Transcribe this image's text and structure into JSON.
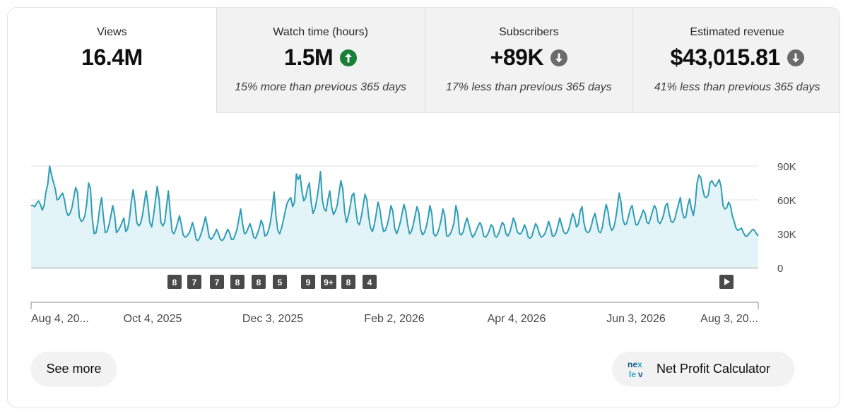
{
  "colors": {
    "line": "#2f9db5",
    "area": "#e3f4f8",
    "up": "#1a7f37",
    "down": "#6b6b6b",
    "grid": "#e0e0e0",
    "marker_bg": "#4a4a4a"
  },
  "metrics": [
    {
      "label": "Views",
      "value": "16.4M",
      "trend": "",
      "comparison": ""
    },
    {
      "label": "Watch time (hours)",
      "value": "1.5M",
      "trend": "up",
      "comparison": "15% more than previous 365 days"
    },
    {
      "label": "Subscribers",
      "value": "+89K",
      "trend": "down",
      "comparison": "17% less than previous 365 days"
    },
    {
      "label": "Estimated revenue",
      "value": "$43,015.81",
      "trend": "down",
      "comparison": "41% less than previous 365 days"
    }
  ],
  "chart_data": {
    "type": "area",
    "y_ticks": [
      "90K",
      "60K",
      "30K",
      "0"
    ],
    "ylim": [
      0,
      90000
    ],
    "x_tick_labels": [
      "Aug 4, 20...",
      "Oct 4, 2025",
      "Dec 3, 2025",
      "Feb 2, 2026",
      "Apr 4, 2026",
      "Jun 3, 2026",
      "Aug 3, 20..."
    ],
    "grid": true,
    "markers": [
      "8",
      "7",
      "7",
      "8",
      "8",
      "5",
      "9",
      "9+",
      "8",
      "4"
    ],
    "series": [
      {
        "values": [
          55,
          55,
          54,
          57,
          59,
          56,
          51,
          55,
          67,
          74,
          90,
          82,
          76,
          70,
          60,
          61,
          64,
          66,
          60,
          50,
          46,
          48,
          53,
          62,
          71,
          67,
          45,
          41,
          42,
          46,
          57,
          75,
          70,
          43,
          30,
          31,
          40,
          53,
          62,
          45,
          31,
          32,
          38,
          46,
          55,
          47,
          31,
          33,
          36,
          40,
          44,
          32,
          34,
          43,
          58,
          69,
          57,
          40,
          37,
          39,
          46,
          57,
          68,
          56,
          40,
          36,
          46,
          59,
          72,
          61,
          40,
          37,
          40,
          54,
          68,
          49,
          32,
          30,
          34,
          40,
          46,
          38,
          29,
          27,
          28,
          30,
          34,
          40,
          34,
          25,
          24,
          27,
          32,
          38,
          45,
          37,
          27,
          25,
          27,
          30,
          34,
          30,
          25,
          24,
          26,
          30,
          34,
          31,
          25,
          25,
          29,
          34,
          43,
          52,
          39,
          30,
          31,
          35,
          39,
          34,
          27,
          26,
          30,
          35,
          42,
          38,
          28,
          29,
          33,
          40,
          52,
          67,
          46,
          33,
          30,
          35,
          42,
          50,
          57,
          60,
          62,
          54,
          58,
          83,
          78,
          82,
          68,
          59,
          62,
          70,
          75,
          58,
          48,
          52,
          60,
          71,
          85,
          60,
          52,
          50,
          60,
          68,
          54,
          47,
          50,
          55,
          66,
          77,
          70,
          50,
          40,
          46,
          54,
          64,
          66,
          52,
          40,
          38,
          45,
          55,
          65,
          60,
          45,
          35,
          32,
          38,
          47,
          58,
          52,
          40,
          32,
          33,
          38,
          45,
          55,
          50,
          35,
          30,
          34,
          40,
          48,
          56,
          50,
          38,
          30,
          32,
          38,
          46,
          54,
          49,
          34,
          29,
          31,
          36,
          44,
          55,
          48,
          30,
          28,
          30,
          35,
          42,
          52,
          46,
          28,
          28,
          30,
          34,
          40,
          55,
          48,
          30,
          29,
          32,
          39,
          44,
          38,
          31,
          27,
          29,
          33,
          37,
          40,
          36,
          28,
          27,
          29,
          33,
          38,
          36,
          28,
          27,
          30,
          35,
          40,
          38,
          30,
          28,
          31,
          37,
          44,
          40,
          32,
          30,
          30,
          33,
          38,
          34,
          27,
          26,
          28,
          34,
          39,
          36,
          30,
          27,
          28,
          30,
          35,
          41,
          36,
          28,
          28,
          31,
          37,
          44,
          38,
          32,
          30,
          31,
          35,
          42,
          48,
          44,
          36,
          38,
          50,
          54,
          40,
          33,
          31,
          32,
          37,
          44,
          48,
          40,
          32,
          31,
          36,
          47,
          56,
          50,
          38,
          33,
          35,
          42,
          53,
          66,
          58,
          43,
          38,
          39,
          45,
          52,
          55,
          46,
          38,
          38,
          42,
          46,
          51,
          48,
          40,
          39,
          44,
          50,
          55,
          52,
          41,
          39,
          42,
          47,
          55,
          57,
          48,
          41,
          40,
          43,
          50,
          56,
          62,
          50,
          44,
          45,
          55,
          61,
          52,
          46,
          56,
          75,
          82,
          80,
          70,
          63,
          62,
          64,
          75,
          77,
          74,
          72,
          75,
          78,
          71,
          55,
          52,
          53,
          58,
          55,
          46,
          41,
          35,
          33,
          34,
          35,
          31,
          28,
          28,
          30,
          32,
          34,
          33,
          30,
          28
        ],
        "area": true
      }
    ]
  },
  "buttons": {
    "see_more": "See more",
    "calculator": "Net Profit Calculator"
  },
  "icons": {
    "trend_up": "arrow-up-circle-icon",
    "trend_down": "arrow-down-circle-icon",
    "play": "play-icon",
    "calculator_logo": "nexlev-logo"
  }
}
